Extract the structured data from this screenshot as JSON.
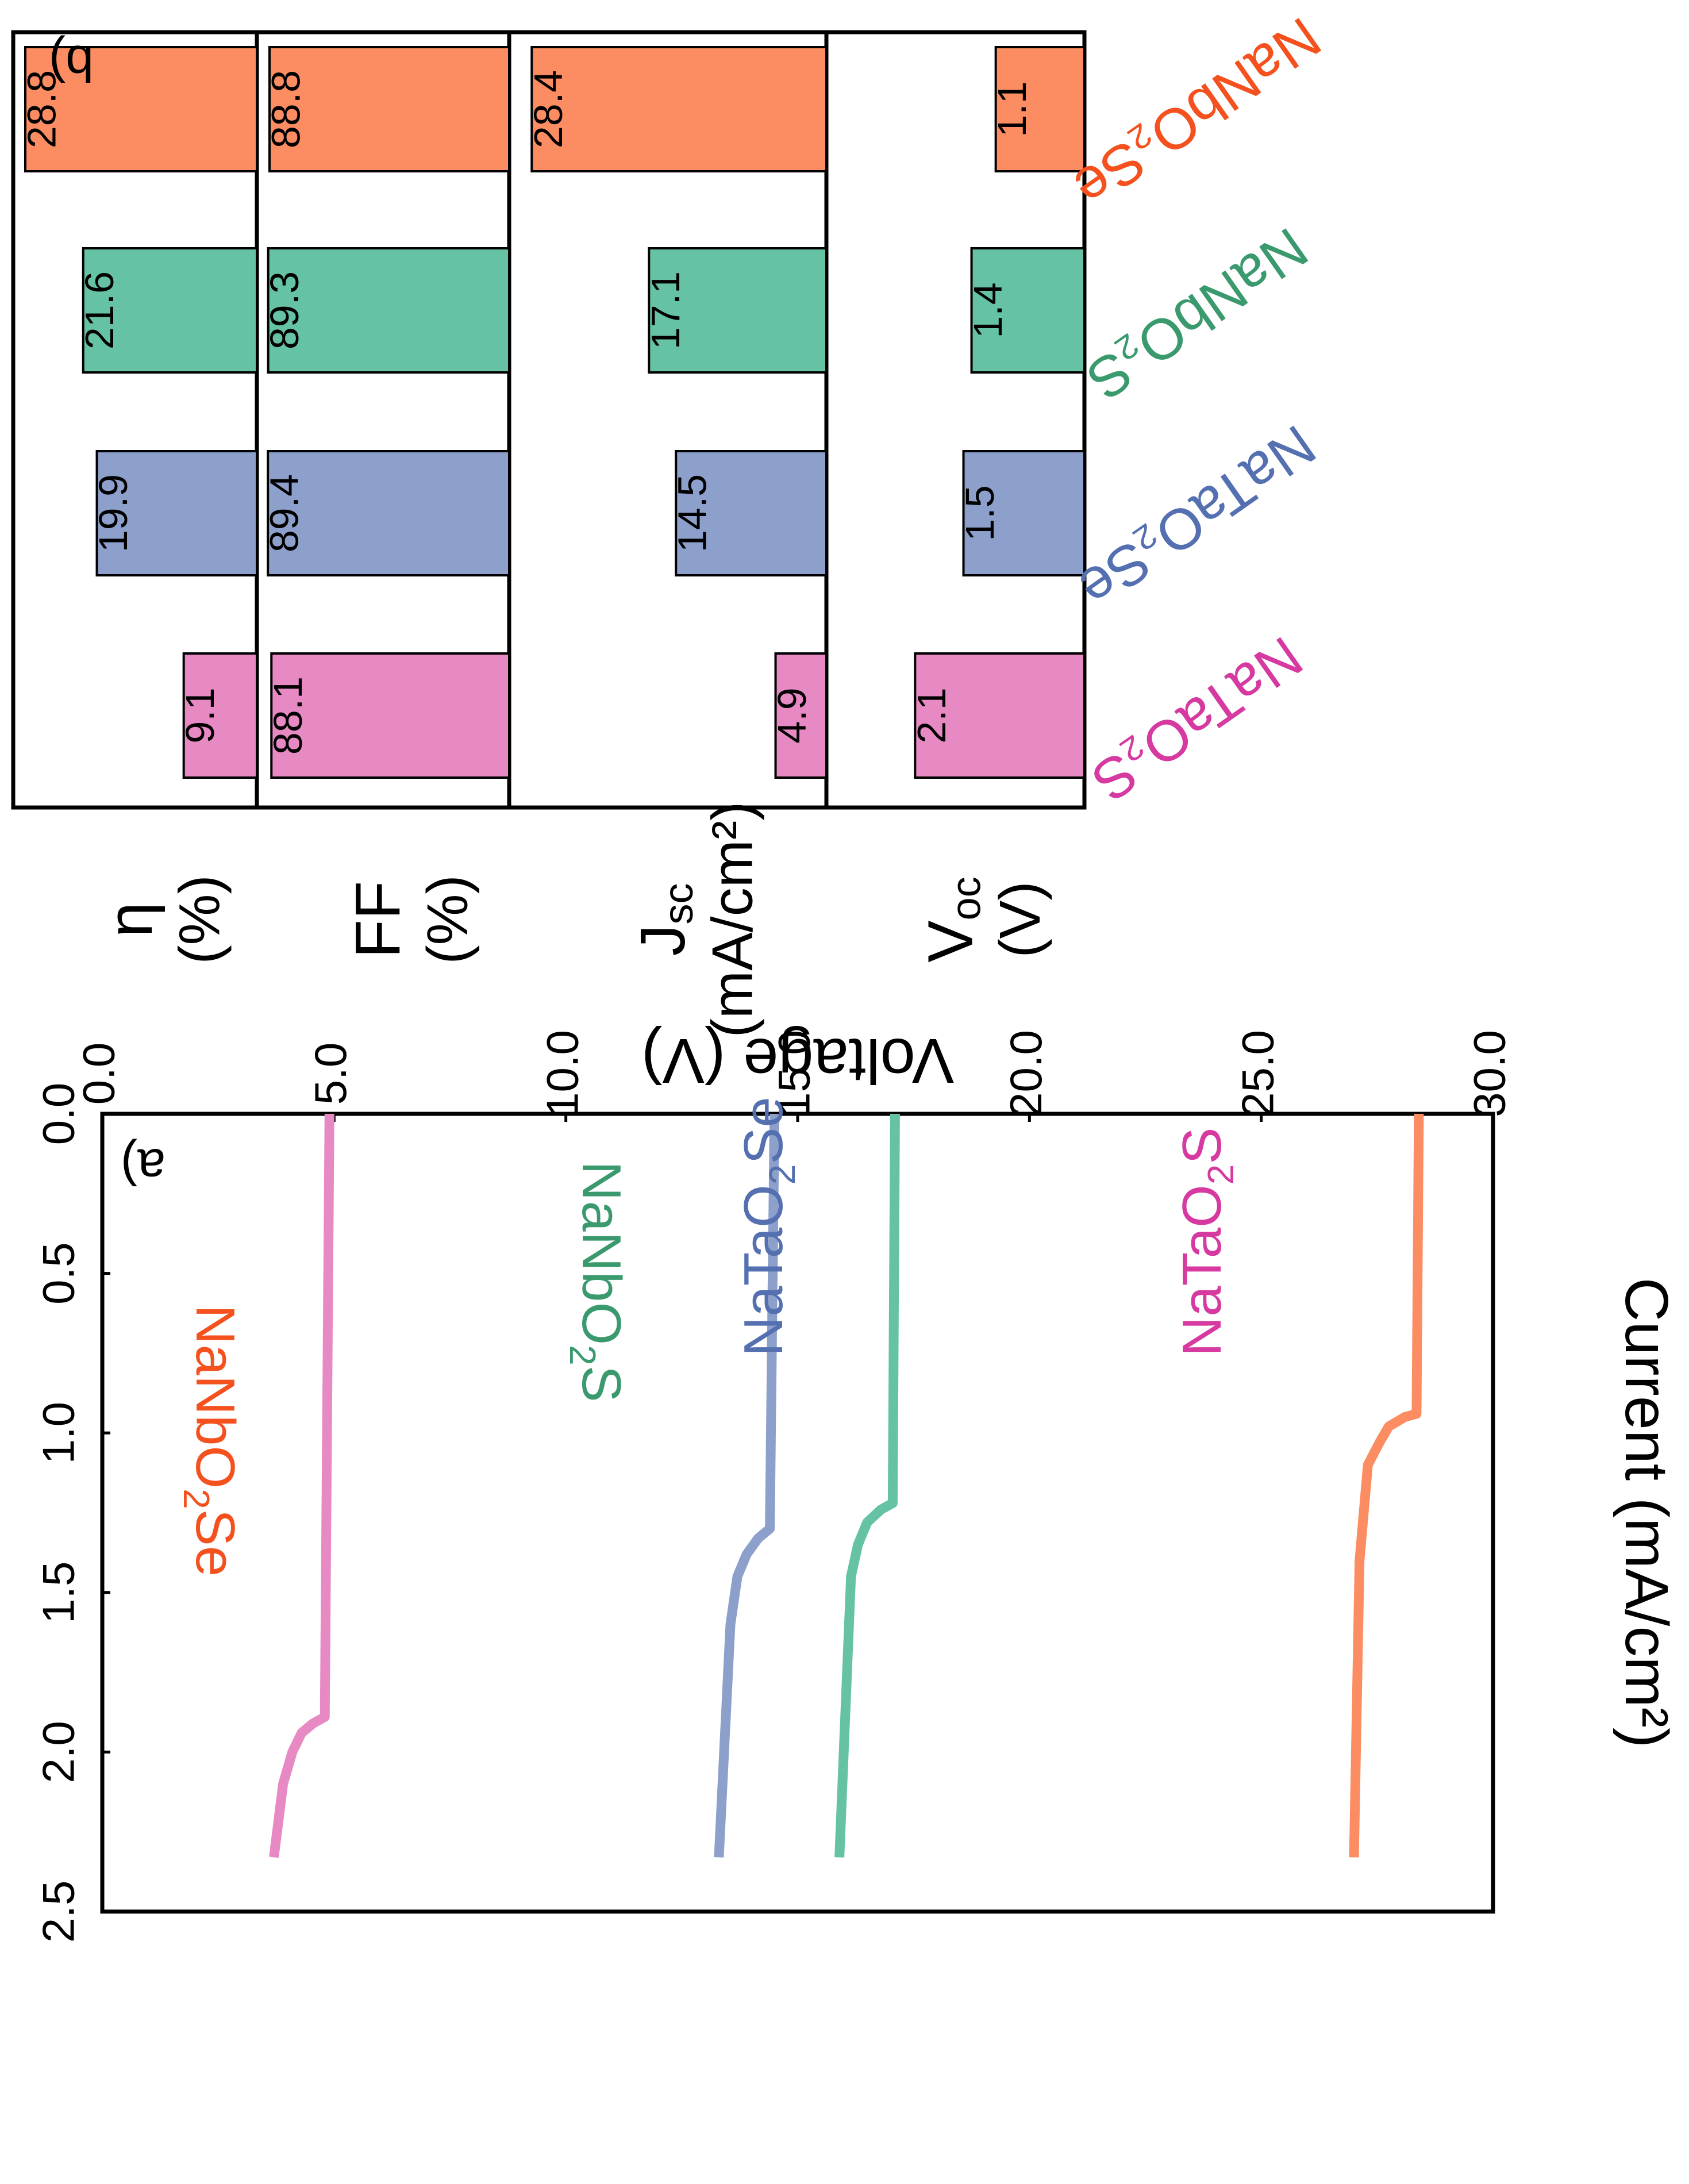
{
  "chart_data": [
    {
      "panel_label": "a)",
      "type": "line",
      "xlabel": "Voltage (V)",
      "ylabel": "Current (mA/cm²)",
      "xlim": [
        0.0,
        2.5
      ],
      "ylim": [
        0.0,
        30.0
      ],
      "xticks": [
        "0.0",
        "0.5",
        "1.0",
        "1.5",
        "2.0",
        "2.5"
      ],
      "yticks": [
        "0.0",
        "5.0",
        "10.0",
        "15.0",
        "20.0",
        "25.0",
        "30.0"
      ],
      "series": [
        {
          "name": "NaNbO₂Se",
          "color": "#fc8d62",
          "label_color": "#f4511e",
          "jsc": 28.4,
          "voc": 1.1,
          "points": [
            [
              0.0,
              28.4
            ],
            [
              0.94,
              28.35
            ],
            [
              0.95,
              28.1
            ],
            [
              0.98,
              27.75
            ],
            [
              1.03,
              27.55
            ],
            [
              1.1,
              27.3
            ],
            [
              1.4,
              27.12
            ],
            [
              2.33,
              27.0
            ]
          ]
        },
        {
          "name": "NaNbO₂S",
          "color": "#66c2a5",
          "label_color": "#3a9a6e",
          "jsc": 17.1,
          "voc": 1.4,
          "points": [
            [
              0.0,
              17.1
            ],
            [
              1.22,
              17.05
            ],
            [
              1.24,
              16.8
            ],
            [
              1.28,
              16.5
            ],
            [
              1.35,
              16.3
            ],
            [
              1.45,
              16.15
            ],
            [
              2.33,
              15.9
            ]
          ]
        },
        {
          "name": "NaTaO₂Se",
          "color": "#8da0cb",
          "label_color": "#5570b0",
          "jsc": 14.5,
          "voc": 1.5,
          "points": [
            [
              0.0,
              14.5
            ],
            [
              1.3,
              14.4
            ],
            [
              1.33,
              14.15
            ],
            [
              1.38,
              13.9
            ],
            [
              1.45,
              13.7
            ],
            [
              1.6,
              13.55
            ],
            [
              2.33,
              13.3
            ]
          ]
        },
        {
          "name": "NaTaO₂S",
          "color": "#e78ac3",
          "label_color": "#d63aa0",
          "jsc": 4.9,
          "voc": 2.1,
          "points": [
            [
              0.0,
              4.9
            ],
            [
              1.89,
              4.8
            ],
            [
              1.91,
              4.55
            ],
            [
              1.94,
              4.3
            ],
            [
              2.0,
              4.1
            ],
            [
              2.1,
              3.9
            ],
            [
              2.33,
              3.7
            ]
          ]
        }
      ]
    },
    {
      "panel_label": "b)",
      "type": "bar",
      "categories": [
        "NaNbO₂Se",
        "NaNbO₂S",
        "NaTaO₂Se",
        "NaTaO₂S"
      ],
      "category_colors": [
        "#fc8d62",
        "#66c2a5",
        "#8da0cb",
        "#e78ac3"
      ],
      "category_label_colors": [
        "#f4511e",
        "#3a9a6e",
        "#5570b0",
        "#d63aa0"
      ],
      "panels": [
        {
          "label": "η",
          "unit": "(%)",
          "values": [
            28.8,
            21.6,
            19.9,
            9.1
          ],
          "value_labels": [
            "28.8",
            "21.6",
            "19.9",
            "9.1"
          ],
          "max": 29.3
        },
        {
          "label": "FF",
          "unit": "(%)",
          "values": [
            88.8,
            89.3,
            89.4,
            88.1
          ],
          "value_labels": [
            "88.8",
            "89.3",
            "89.4",
            "88.1"
          ],
          "max": 90.5
        },
        {
          "label": "J",
          "label_sub": "sc",
          "unit": "(mA/cm²)",
          "values": [
            28.4,
            17.1,
            14.5,
            4.9
          ],
          "value_labels": [
            "28.4",
            "17.1",
            "14.5",
            "4.9"
          ],
          "max": 29.8
        },
        {
          "label": "V",
          "label_sub": "oc",
          "unit": "(V)",
          "values": [
            1.1,
            1.4,
            1.5,
            2.1
          ],
          "value_labels": [
            "1.1",
            "1.4",
            "1.5",
            "2.1"
          ],
          "max": 3.1
        }
      ]
    }
  ]
}
